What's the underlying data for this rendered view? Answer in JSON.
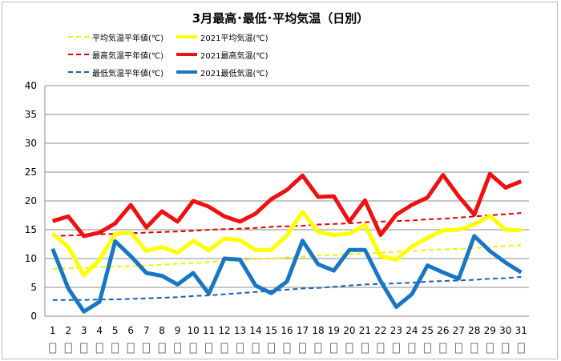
{
  "chart_data": {
    "type": "line",
    "title": "3月最高･最低･平均気温（日別）",
    "xlabel": "",
    "ylabel": "",
    "ylim": [
      0,
      40
    ],
    "yticks": [
      0,
      5,
      10,
      15,
      20,
      25,
      30,
      35,
      40
    ],
    "grid": true,
    "legend_position": "top",
    "x": [
      1,
      2,
      3,
      4,
      5,
      6,
      7,
      8,
      9,
      10,
      11,
      12,
      13,
      14,
      15,
      16,
      17,
      18,
      19,
      20,
      21,
      22,
      23,
      24,
      25,
      26,
      27,
      28,
      29,
      30,
      31
    ],
    "xtick_labels": [
      "1",
      "2",
      "3",
      "4",
      "5",
      "6",
      "7",
      "8",
      "9",
      "10",
      "11",
      "12",
      "13",
      "14",
      "15",
      "16",
      "17",
      "18",
      "19",
      "20",
      "21",
      "22",
      "23",
      "24",
      "25",
      "26",
      "27",
      "28",
      "29",
      "30",
      "31"
    ],
    "series": [
      {
        "name": "平均気温平年値(℃)",
        "color": "#f2f200",
        "style": "dashed",
        "values": [
          8.2,
          8.3,
          8.4,
          8.5,
          8.6,
          8.7,
          8.8,
          8.9,
          9.1,
          9.2,
          9.4,
          9.6,
          9.7,
          9.9,
          10.0,
          10.2,
          10.3,
          10.5,
          10.6,
          10.8,
          10.9,
          11.0,
          11.2,
          11.3,
          11.5,
          11.6,
          11.7,
          11.8,
          12.0,
          12.2,
          12.3
        ]
      },
      {
        "name": "2021平均気温(℃)",
        "color": "#ffff00",
        "style": "solid",
        "values": [
          14.3,
          12.0,
          7.1,
          9.8,
          14.3,
          14.5,
          11.3,
          12.0,
          11.0,
          13.1,
          11.4,
          13.5,
          13.2,
          11.5,
          11.5,
          14.0,
          18.1,
          14.6,
          14.1,
          14.3,
          15.8,
          10.4,
          9.8,
          12.1,
          13.6,
          14.9,
          15.0,
          15.9,
          17.4,
          15.0,
          14.9
        ]
      },
      {
        "name": "最高気温平年値(℃)",
        "color": "#e00000",
        "style": "dashed",
        "values": [
          13.9,
          14.0,
          14.1,
          14.2,
          14.3,
          14.4,
          14.5,
          14.6,
          14.7,
          14.8,
          15.0,
          15.1,
          15.2,
          15.3,
          15.5,
          15.6,
          15.7,
          15.9,
          16.0,
          16.1,
          16.3,
          16.4,
          16.5,
          16.6,
          16.8,
          16.9,
          17.1,
          17.3,
          17.5,
          17.7,
          17.9
        ]
      },
      {
        "name": "2021最高気温(℃)",
        "color": "#ee1111",
        "style": "solid",
        "values": [
          16.5,
          17.3,
          13.9,
          14.5,
          16.1,
          19.3,
          15.4,
          18.2,
          16.4,
          20.0,
          19.0,
          17.3,
          16.4,
          17.8,
          20.3,
          21.9,
          24.4,
          20.7,
          20.8,
          16.4,
          20.1,
          14.1,
          17.6,
          19.3,
          20.6,
          24.5,
          20.8,
          17.6,
          24.7,
          22.3,
          23.4
        ]
      },
      {
        "name": "最低気温平年値(℃)",
        "color": "#1a5fb4",
        "style": "dashed",
        "values": [
          2.8,
          2.8,
          2.8,
          2.9,
          2.9,
          3.0,
          3.1,
          3.2,
          3.3,
          3.5,
          3.6,
          3.8,
          4.0,
          4.2,
          4.4,
          4.6,
          4.8,
          4.9,
          5.1,
          5.3,
          5.5,
          5.6,
          5.7,
          5.8,
          6.0,
          6.1,
          6.2,
          6.3,
          6.5,
          6.6,
          6.8
        ]
      },
      {
        "name": "2021最低気温(℃)",
        "color": "#1976c2",
        "style": "solid",
        "values": [
          11.7,
          4.8,
          0.8,
          2.5,
          13.0,
          10.4,
          7.5,
          7.0,
          5.5,
          7.5,
          3.9,
          10.0,
          9.8,
          5.3,
          4.0,
          6.0,
          13.1,
          9.0,
          7.9,
          11.5,
          11.5,
          6.1,
          1.6,
          3.8,
          8.8,
          7.6,
          6.5,
          13.9,
          11.3,
          9.3,
          7.6
        ]
      }
    ]
  }
}
